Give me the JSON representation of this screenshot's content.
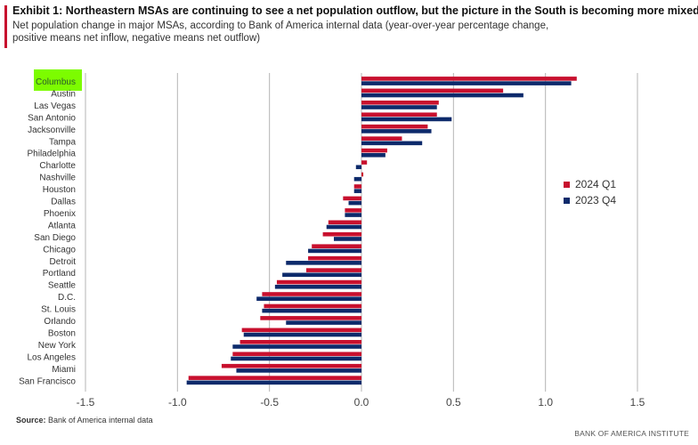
{
  "title": "Exhibit 1: Northeastern MSAs are continuing to see a net population outflow, but the picture in the South is becoming more mixed",
  "subtitle": "Net population change in major MSAs, according to Bank of America internal data (year-over-year percentage change, positive means net inflow, negative means net outflow)",
  "source_label": "Source:",
  "source_text": "Bank of America internal data",
  "brand": "BANK OF AMERICA INSTITUTE",
  "colors": {
    "accent": "#c8102e",
    "series_2024q1": "#c8102e",
    "series_2023q4": "#0d2a6b",
    "highlight": "#7cfc00"
  },
  "chart_data": {
    "type": "bar",
    "orientation": "horizontal",
    "categories": [
      "Columbus",
      "Austin",
      "Las Vegas",
      "San Antonio",
      "Jacksonville",
      "Tampa",
      "Philadelphia",
      "Charlotte",
      "Nashville",
      "Houston",
      "Dallas",
      "Phoenix",
      "Atlanta",
      "San Diego",
      "Chicago",
      "Detroit",
      "Portland",
      "Seattle",
      "D.C.",
      "St. Louis",
      "Orlando",
      "Boston",
      "New York",
      "Los Angeles",
      "Miami",
      "San Francisco"
    ],
    "highlighted_category": "Columbus",
    "series": [
      {
        "name": "2024 Q1",
        "values": [
          1.17,
          0.77,
          0.42,
          0.41,
          0.36,
          0.22,
          0.14,
          0.03,
          0.01,
          -0.04,
          -0.1,
          -0.09,
          -0.18,
          -0.21,
          -0.27,
          -0.29,
          -0.3,
          -0.46,
          -0.54,
          -0.53,
          -0.55,
          -0.65,
          -0.66,
          -0.7,
          -0.76,
          -0.94
        ]
      },
      {
        "name": "2023 Q4",
        "values": [
          1.14,
          0.88,
          0.41,
          0.49,
          0.38,
          0.33,
          0.13,
          -0.03,
          -0.04,
          -0.04,
          -0.07,
          -0.09,
          -0.19,
          -0.15,
          -0.29,
          -0.41,
          -0.43,
          -0.47,
          -0.57,
          -0.54,
          -0.41,
          -0.64,
          -0.7,
          -0.71,
          -0.68,
          -0.95
        ]
      }
    ],
    "xlim": [
      -1.5,
      1.5
    ],
    "xticks": [
      -1.5,
      -1.0,
      -0.5,
      0.0,
      0.5,
      1.0,
      1.5
    ],
    "xtick_labels": [
      "-1.5",
      "-1.0",
      "-0.5",
      "0.0",
      "0.5",
      "1.0",
      "1.5"
    ],
    "grid": "vertical",
    "legend_position": "right"
  }
}
